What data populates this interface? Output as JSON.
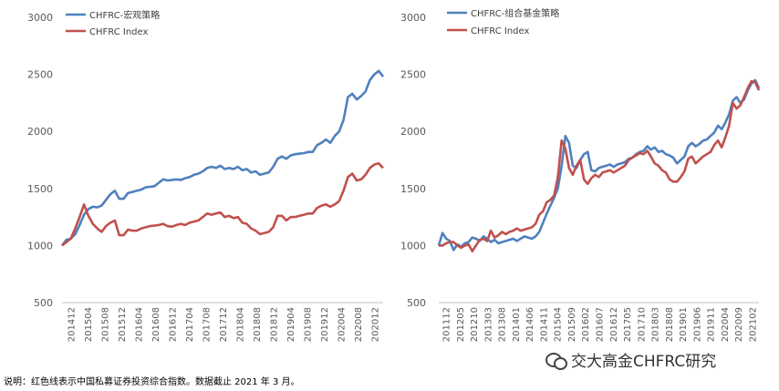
{
  "chart_data": [
    {
      "type": "line",
      "ylim": [
        500,
        3000
      ],
      "yticks": [
        500,
        1000,
        1500,
        2000,
        2500,
        3000
      ],
      "x_tick_labels": [
        "201412",
        "201504",
        "201508",
        "201512",
        "201604",
        "201608",
        "201612",
        "201704",
        "201708",
        "201712",
        "201804",
        "201808",
        "201812",
        "201904",
        "201908",
        "201912",
        "202004",
        "202008",
        "202012"
      ],
      "legend": [
        "CHFRC-宏观策略",
        "CHFRC Index"
      ],
      "series": [
        {
          "name": "CHFRC-宏观策略",
          "color": "#4F81BD",
          "values": [
            1000,
            1050,
            1060,
            1100,
            1180,
            1270,
            1320,
            1340,
            1335,
            1350,
            1400,
            1450,
            1480,
            1410,
            1410,
            1460,
            1470,
            1480,
            1490,
            1510,
            1515,
            1520,
            1550,
            1580,
            1570,
            1575,
            1580,
            1575,
            1590,
            1600,
            1620,
            1630,
            1650,
            1680,
            1690,
            1680,
            1700,
            1670,
            1680,
            1670,
            1690,
            1660,
            1670,
            1640,
            1650,
            1620,
            1630,
            1640,
            1690,
            1760,
            1780,
            1760,
            1790,
            1800,
            1805,
            1810,
            1820,
            1820,
            1880,
            1900,
            1930,
            1900,
            1960,
            2000,
            2100,
            2300,
            2330,
            2280,
            2310,
            2350,
            2450,
            2500,
            2530,
            2480
          ]
        },
        {
          "name": "CHFRC Index",
          "color": "#C0504D",
          "values": [
            1000,
            1030,
            1060,
            1150,
            1250,
            1360,
            1260,
            1190,
            1150,
            1120,
            1170,
            1200,
            1220,
            1090,
            1090,
            1140,
            1130,
            1130,
            1150,
            1160,
            1170,
            1175,
            1180,
            1190,
            1170,
            1165,
            1180,
            1190,
            1180,
            1200,
            1210,
            1220,
            1250,
            1280,
            1270,
            1280,
            1290,
            1250,
            1260,
            1240,
            1250,
            1200,
            1190,
            1150,
            1130,
            1100,
            1110,
            1120,
            1160,
            1260,
            1260,
            1220,
            1250,
            1250,
            1260,
            1270,
            1280,
            1280,
            1330,
            1350,
            1360,
            1340,
            1360,
            1390,
            1480,
            1600,
            1630,
            1570,
            1580,
            1620,
            1680,
            1710,
            1720,
            1680
          ]
        }
      ]
    },
    {
      "type": "line",
      "ylim": [
        500,
        3000
      ],
      "yticks": [
        500,
        1000,
        1500,
        2000,
        2500,
        3000
      ],
      "x_tick_labels": [
        "201112",
        "201205",
        "201210",
        "201303",
        "201308",
        "201401",
        "201406",
        "201411",
        "201504",
        "201509",
        "201602",
        "201607",
        "201612",
        "201705",
        "201710",
        "201803",
        "201808",
        "201901",
        "201906",
        "201911",
        "202004",
        "202009",
        "202102"
      ],
      "legend": [
        "CHFRC-组合基金策略",
        "CHFRC Index"
      ],
      "series": [
        {
          "name": "CHFRC-组合基金策略",
          "color": "#4F81BD",
          "values": [
            1000,
            1110,
            1060,
            1040,
            960,
            1010,
            990,
            1020,
            1030,
            1070,
            1060,
            1040,
            1080,
            1060,
            1030,
            1050,
            1020,
            1030,
            1040,
            1050,
            1060,
            1040,
            1060,
            1080,
            1070,
            1060,
            1080,
            1120,
            1200,
            1280,
            1350,
            1420,
            1500,
            1700,
            1960,
            1900,
            1700,
            1680,
            1750,
            1800,
            1820,
            1660,
            1650,
            1680,
            1690,
            1700,
            1710,
            1690,
            1710,
            1720,
            1730,
            1760,
            1770,
            1800,
            1820,
            1830,
            1870,
            1840,
            1860,
            1820,
            1830,
            1800,
            1790,
            1770,
            1720,
            1750,
            1780,
            1870,
            1900,
            1870,
            1890,
            1920,
            1930,
            1960,
            1990,
            2050,
            2020,
            2080,
            2150,
            2270,
            2300,
            2250,
            2280,
            2360,
            2420,
            2450,
            2380
          ]
        },
        {
          "name": "CHFRC Index",
          "color": "#C0504D",
          "values": [
            1000,
            1000,
            1020,
            1030,
            1030,
            1000,
            980,
            1000,
            1010,
            950,
            1000,
            1050,
            1060,
            1040,
            1130,
            1070,
            1090,
            1120,
            1100,
            1120,
            1130,
            1150,
            1130,
            1140,
            1150,
            1160,
            1190,
            1270,
            1300,
            1380,
            1400,
            1440,
            1600,
            1920,
            1850,
            1680,
            1620,
            1700,
            1750,
            1580,
            1540,
            1590,
            1620,
            1600,
            1640,
            1650,
            1660,
            1640,
            1660,
            1680,
            1700,
            1750,
            1770,
            1790,
            1810,
            1800,
            1830,
            1780,
            1720,
            1700,
            1660,
            1640,
            1580,
            1560,
            1560,
            1600,
            1650,
            1760,
            1780,
            1720,
            1750,
            1780,
            1800,
            1820,
            1880,
            1920,
            1860,
            1950,
            2050,
            2250,
            2200,
            2230,
            2300,
            2380,
            2440,
            2430,
            2360
          ]
        }
      ]
    }
  ],
  "note": "说明：红色线表示中国私募证券投资综合指数。数据截止 2021 年 3 月。",
  "watermark": "交大高金CHFRC研究"
}
